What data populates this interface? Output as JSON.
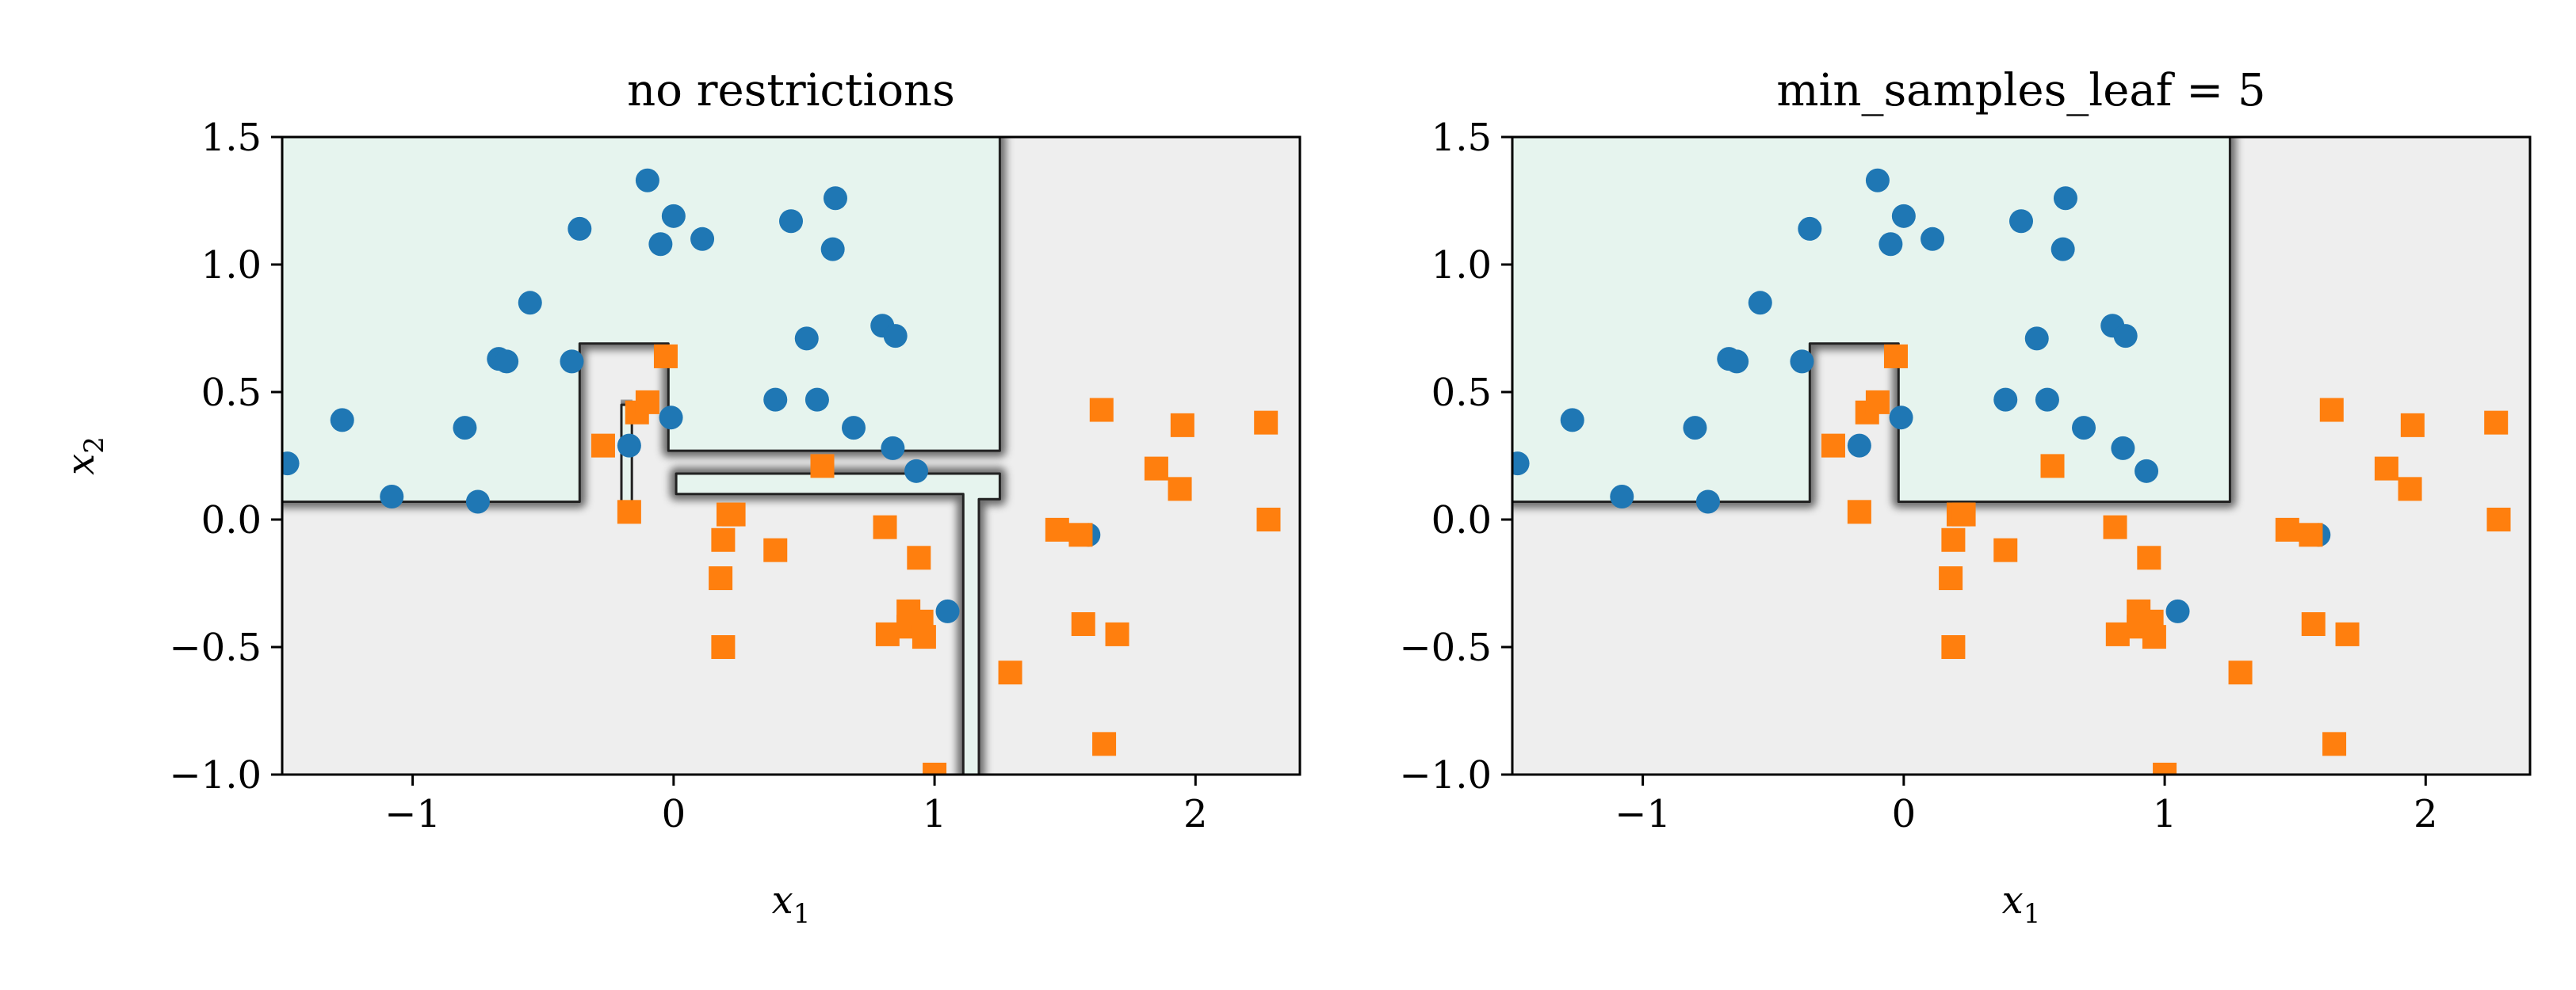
{
  "chart_data": [
    {
      "type": "scatter",
      "title": "no restrictions",
      "xlabel": "x",
      "xlabel_sub": "1",
      "ylabel": "x",
      "ylabel_sub": "2",
      "xlim": [
        -1.5,
        2.4
      ],
      "ylim": [
        -1.0,
        1.5
      ],
      "xticks": [
        -1,
        0,
        1,
        2
      ],
      "xtick_labels": [
        "−1",
        "0",
        "1",
        "2"
      ],
      "yticks": [
        -1.0,
        -0.5,
        0.0,
        0.5,
        1.0,
        1.5
      ],
      "ytick_labels": [
        "−1.0",
        "−0.5",
        "0.0",
        "0.5",
        "1.0",
        "1.5"
      ],
      "grid": false,
      "colors": {
        "class0": "#1f77b4",
        "class1": "#ff7f0e",
        "region0": "#e6f4ee",
        "region1": "#eeeeee"
      },
      "decision_regions": [
        [
          [
            -1.5,
            0.07
          ],
          [
            -0.36,
            0.07
          ],
          [
            -0.36,
            0.69
          ],
          [
            -0.02,
            0.69
          ],
          [
            -0.02,
            0.27
          ],
          [
            1.25,
            0.27
          ],
          [
            1.25,
            1.5
          ],
          [
            -1.5,
            1.5
          ]
        ],
        [
          [
            -0.2,
            0.07
          ],
          [
            -0.2,
            0.45
          ],
          [
            -0.16,
            0.45
          ],
          [
            -0.16,
            0.07
          ]
        ],
        [
          [
            0.01,
            0.1
          ],
          [
            0.01,
            0.18
          ],
          [
            1.25,
            0.18
          ],
          [
            1.25,
            0.08
          ],
          [
            1.17,
            0.08
          ],
          [
            1.17,
            -1.0
          ],
          [
            1.11,
            -1.0
          ],
          [
            1.11,
            0.1
          ]
        ]
      ],
      "series": [
        {
          "marker": "circle",
          "x": [
            -1.48,
            -1.27,
            -1.08,
            -0.8,
            -0.75,
            -0.67,
            -0.64,
            -0.55,
            -0.39,
            -0.36,
            -0.17,
            -0.1,
            -0.05,
            0.0,
            -0.01,
            0.11,
            0.39,
            0.45,
            0.51,
            0.55,
            0.61,
            0.62,
            0.69,
            0.8,
            0.84,
            0.85,
            0.93,
            1.05,
            1.59
          ],
          "y": [
            0.22,
            0.39,
            0.09,
            0.36,
            0.07,
            0.63,
            0.62,
            0.85,
            0.62,
            1.14,
            0.29,
            1.33,
            1.08,
            1.19,
            0.4,
            1.1,
            0.47,
            1.17,
            0.71,
            0.47,
            1.06,
            1.26,
            0.36,
            0.76,
            0.28,
            0.72,
            0.19,
            -0.36,
            -0.06
          ]
        },
        {
          "marker": "square",
          "x": [
            -0.27,
            -0.17,
            -0.14,
            -0.1,
            -0.03,
            0.18,
            0.19,
            0.19,
            0.21,
            0.23,
            0.39,
            0.57,
            0.81,
            0.82,
            0.9,
            0.9,
            0.94,
            0.95,
            0.96,
            1.0,
            1.29,
            1.47,
            1.56,
            1.57,
            1.64,
            1.65,
            1.7,
            1.85,
            1.94,
            1.95,
            2.27,
            2.28
          ],
          "y": [
            0.29,
            0.03,
            0.42,
            0.46,
            0.64,
            -0.23,
            -0.5,
            -0.08,
            0.02,
            0.02,
            -0.12,
            0.21,
            -0.03,
            -0.45,
            -0.42,
            -0.36,
            -0.15,
            -0.4,
            -0.46,
            -1.0,
            -0.6,
            -0.04,
            -0.06,
            -0.41,
            0.43,
            -0.88,
            -0.45,
            0.2,
            0.12,
            0.37,
            0.38,
            0.0
          ]
        }
      ]
    },
    {
      "type": "scatter",
      "title": "min_samples_leaf = 5",
      "xlabel": "x",
      "xlabel_sub": "1",
      "ylabel": "",
      "ylabel_sub": "",
      "xlim": [
        -1.5,
        2.4
      ],
      "ylim": [
        -1.0,
        1.5
      ],
      "xticks": [
        -1,
        0,
        1,
        2
      ],
      "xtick_labels": [
        "−1",
        "0",
        "1",
        "2"
      ],
      "yticks": [
        -1.0,
        -0.5,
        0.0,
        0.5,
        1.0,
        1.5
      ],
      "ytick_labels": [
        "−1.0",
        "−0.5",
        "0.0",
        "0.5",
        "1.0",
        "1.5"
      ],
      "grid": false,
      "colors": {
        "class0": "#1f77b4",
        "class1": "#ff7f0e",
        "region0": "#e6f4ee",
        "region1": "#eeeeee"
      },
      "decision_regions": [
        [
          [
            -1.5,
            0.07
          ],
          [
            -0.36,
            0.07
          ],
          [
            -0.36,
            0.69
          ],
          [
            -0.02,
            0.69
          ],
          [
            -0.02,
            0.07
          ],
          [
            1.25,
            0.07
          ],
          [
            1.25,
            1.5
          ],
          [
            -1.5,
            1.5
          ]
        ]
      ],
      "series": [
        {
          "marker": "circle",
          "x": [
            -1.48,
            -1.27,
            -1.08,
            -0.8,
            -0.75,
            -0.67,
            -0.64,
            -0.55,
            -0.39,
            -0.36,
            -0.17,
            -0.1,
            -0.05,
            0.0,
            -0.01,
            0.11,
            0.39,
            0.45,
            0.51,
            0.55,
            0.61,
            0.62,
            0.69,
            0.8,
            0.84,
            0.85,
            0.93,
            1.05,
            1.59
          ],
          "y": [
            0.22,
            0.39,
            0.09,
            0.36,
            0.07,
            0.63,
            0.62,
            0.85,
            0.62,
            1.14,
            0.29,
            1.33,
            1.08,
            1.19,
            0.4,
            1.1,
            0.47,
            1.17,
            0.71,
            0.47,
            1.06,
            1.26,
            0.36,
            0.76,
            0.28,
            0.72,
            0.19,
            -0.36,
            -0.06
          ]
        },
        {
          "marker": "square",
          "x": [
            -0.27,
            -0.17,
            -0.14,
            -0.1,
            -0.03,
            0.18,
            0.19,
            0.19,
            0.21,
            0.23,
            0.39,
            0.57,
            0.81,
            0.82,
            0.9,
            0.9,
            0.94,
            0.95,
            0.96,
            1.0,
            1.29,
            1.47,
            1.56,
            1.57,
            1.64,
            1.65,
            1.7,
            1.85,
            1.94,
            1.95,
            2.27,
            2.28
          ],
          "y": [
            0.29,
            0.03,
            0.42,
            0.46,
            0.64,
            -0.23,
            -0.5,
            -0.08,
            0.02,
            0.02,
            -0.12,
            0.21,
            -0.03,
            -0.45,
            -0.42,
            -0.36,
            -0.15,
            -0.4,
            -0.46,
            -1.0,
            -0.6,
            -0.04,
            -0.06,
            -0.41,
            0.43,
            -0.88,
            -0.45,
            0.2,
            0.12,
            0.37,
            0.38,
            0.0
          ]
        }
      ]
    }
  ]
}
